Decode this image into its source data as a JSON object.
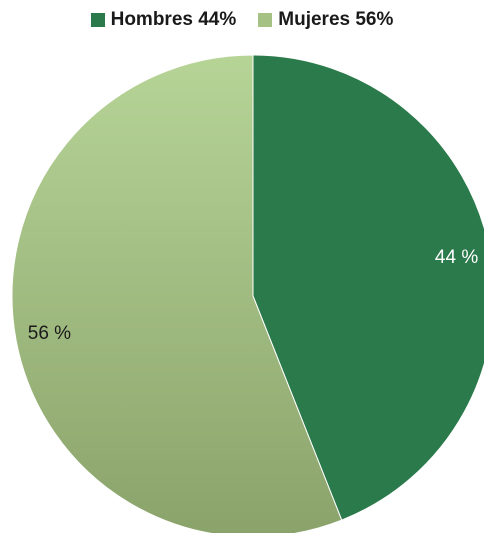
{
  "chart_data": {
    "type": "pie",
    "slices": [
      {
        "legend_label": "Hombres 44%",
        "value": 44,
        "data_label": "44 %",
        "color": "#2b7a4b",
        "label_color": "#ffffff"
      },
      {
        "legend_label": "Mujeres 56%",
        "value": 56,
        "data_label": "56 %",
        "color": "#a5c184",
        "gradient_top": "#b7d497",
        "gradient_bottom": "#8aa36b",
        "label_color": "#1a1a1a"
      }
    ],
    "legend_position": "top",
    "start_angle": "12 o'clock",
    "direction": "clockwise"
  }
}
